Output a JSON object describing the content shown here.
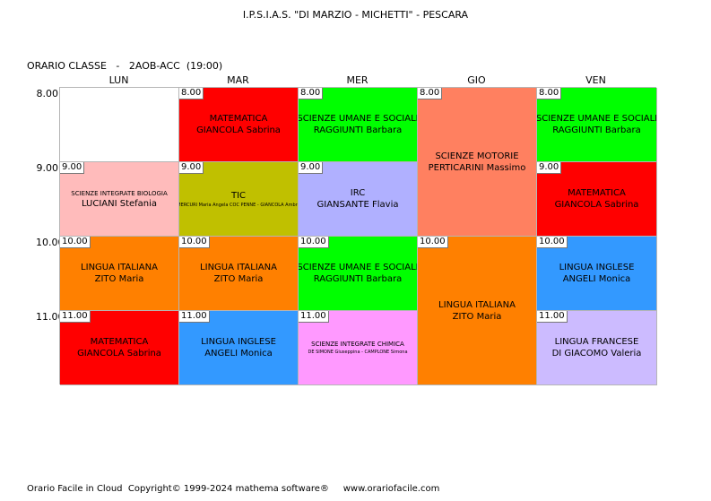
{
  "header": {
    "school": "I.P.S.I.A.S. \"DI MARZIO - MICHETTI\" - PESCARA"
  },
  "class_title": "ORARIO CLASSE   -   2AOB-ACC  (19:00)",
  "days": [
    "LUN",
    "MAR",
    "MER",
    "GIO",
    "VEN"
  ],
  "hours": [
    "8.00",
    "9.00",
    "10.00",
    "11.00"
  ],
  "lessons": [
    {
      "time": "8.00",
      "subject": "",
      "teacher": "",
      "color": "#ffffff"
    },
    {
      "time": "9.00",
      "subject": "SCIENZE INTEGRATE  BIOLOGIA",
      "teacher": "LUCIANI Stefania",
      "color": "#ffbbbb"
    },
    {
      "time": "10.00",
      "subject": "LINGUA ITALIANA",
      "teacher": "ZITO Maria",
      "color": "#ff8000"
    },
    {
      "time": "11.00",
      "subject": "MATEMATICA",
      "teacher": "GIANCOLA Sabrina",
      "color": "#ff0000"
    },
    {
      "time": "8.00",
      "subject": "MATEMATICA",
      "teacher": "GIANCOLA Sabrina",
      "color": "#ff0000"
    },
    {
      "time": "9.00",
      "subject": "TIC",
      "teacher": "MERCURI Maria Angela COC PENNE - GIANCOLA Ambra",
      "color": "#c0c000"
    },
    {
      "time": "10.00",
      "subject": "LINGUA ITALIANA",
      "teacher": "ZITO Maria",
      "color": "#ff8000"
    },
    {
      "time": "11.00",
      "subject": "LINGUA INGLESE",
      "teacher": "ANGELI Monica",
      "color": "#3399ff"
    },
    {
      "time": "8.00",
      "subject": "SCIENZE UMANE E SOCIALI",
      "teacher": "RAGGIUNTI Barbara",
      "color": "#00ff00"
    },
    {
      "time": "9.00",
      "subject": "IRC",
      "teacher": "GIANSANTE Flavia",
      "color": "#b0b0ff"
    },
    {
      "time": "10.00",
      "subject": "SCIENZE UMANE E SOCIALI",
      "teacher": "RAGGIUNTI Barbara",
      "color": "#00ff00"
    },
    {
      "time": "11.00",
      "subject": "SCIENZE INTEGRATE CHIMICA",
      "teacher": "DE SIMONE Giuseppina - CAMPLONE Simona",
      "color": "#ff99ff"
    },
    {
      "time": "8.00",
      "subject": "SCIENZE MOTORIE",
      "teacher": "PERTICARINI Massimo",
      "color": "#ff8060"
    },
    {
      "time": "10.00",
      "subject": "LINGUA ITALIANA",
      "teacher": "ZITO Maria",
      "color": "#ff8000"
    },
    {
      "time": "8.00",
      "subject": "SCIENZE UMANE E SOCIALI",
      "teacher": "RAGGIUNTI Barbara",
      "color": "#00ff00"
    },
    {
      "time": "9.00",
      "subject": "MATEMATICA",
      "teacher": "GIANCOLA Sabrina",
      "color": "#ff0000"
    },
    {
      "time": "10.00",
      "subject": "LINGUA INGLESE",
      "teacher": "ANGELI Monica",
      "color": "#3399ff"
    },
    {
      "time": "11.00",
      "subject": "LINGUA FRANCESE",
      "teacher": "DI GIACOMO Valeria",
      "color": "#ccbbff"
    }
  ],
  "footer": "Orario Facile in Cloud  Copyright© 1999-2024 mathema software®     www.orariofacile.com"
}
